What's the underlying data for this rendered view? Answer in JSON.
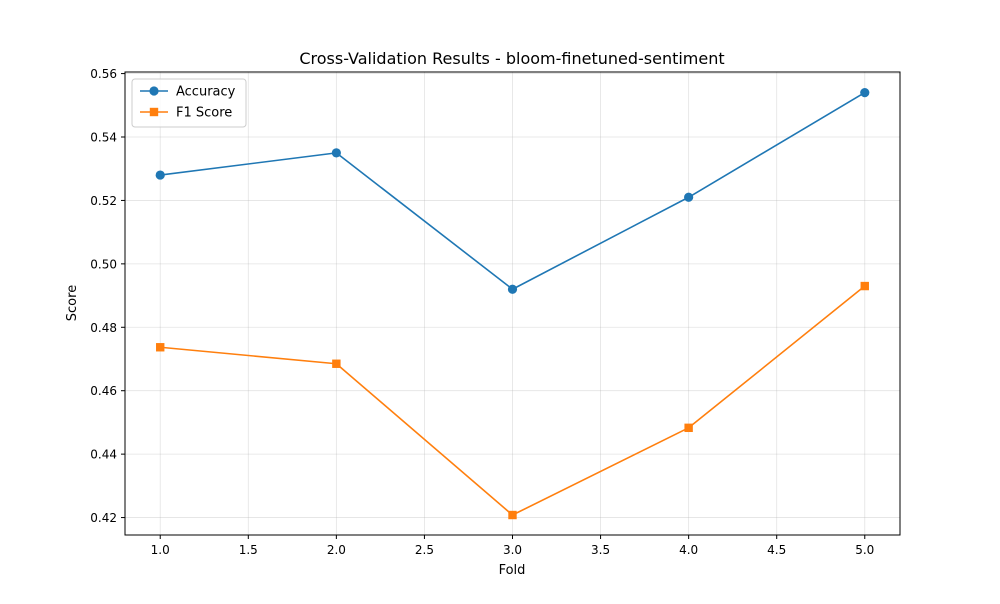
{
  "chart_data": {
    "type": "line",
    "title": "Cross-Validation Results - bloom-finetuned-sentiment",
    "xlabel": "Fold",
    "ylabel": "Score",
    "xlim": [
      0.8,
      5.2
    ],
    "ylim": [
      0.4145,
      0.5605
    ],
    "x_ticks": [
      1.0,
      1.5,
      2.0,
      2.5,
      3.0,
      3.5,
      4.0,
      4.5,
      5.0
    ],
    "x_tick_labels": [
      "1.0",
      "1.5",
      "2.0",
      "2.5",
      "3.0",
      "3.5",
      "4.0",
      "4.5",
      "5.0"
    ],
    "y_ticks": [
      0.42,
      0.44,
      0.46,
      0.48,
      0.5,
      0.52,
      0.54,
      0.56
    ],
    "y_tick_labels": [
      "0.42",
      "0.44",
      "0.46",
      "0.48",
      "0.50",
      "0.52",
      "0.54",
      "0.56"
    ],
    "grid": true,
    "legend_position": "top-left",
    "x": [
      1,
      2,
      3,
      4,
      5
    ],
    "series": [
      {
        "name": "Accuracy",
        "values": [
          0.528,
          0.535,
          0.492,
          0.521,
          0.554
        ],
        "color": "#1f77b4",
        "marker": "circle"
      },
      {
        "name": "F1 Score",
        "values": [
          0.4737,
          0.4685,
          0.4208,
          0.4483,
          0.493
        ],
        "color": "#ff7f0e",
        "marker": "square"
      }
    ]
  }
}
